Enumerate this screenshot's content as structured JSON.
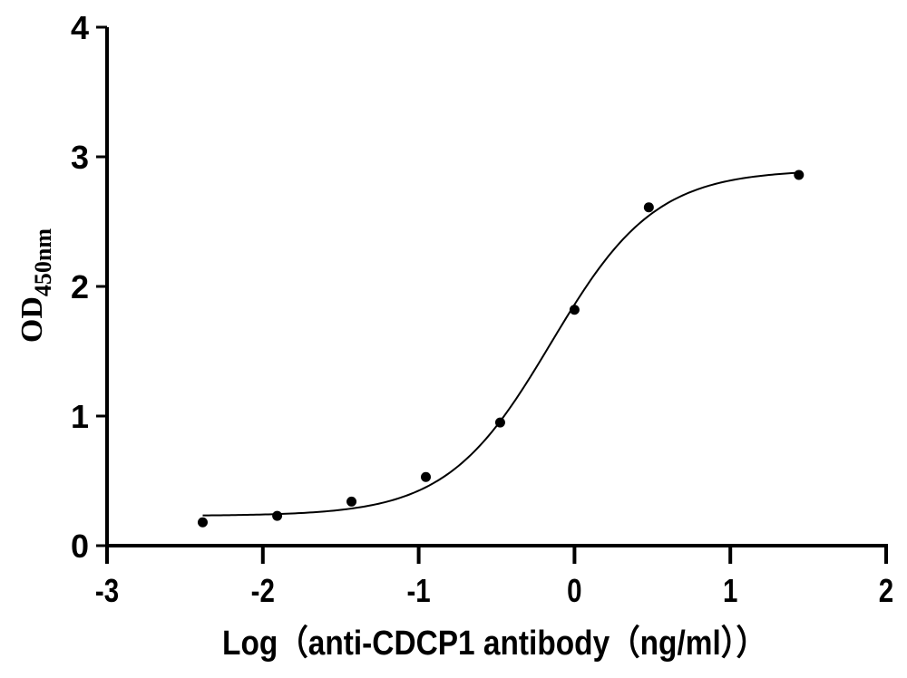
{
  "chart_data": {
    "type": "scatter",
    "title": "",
    "xlabel": "Log（anti-CDCP1 antibody（ng/ml））",
    "ylabel": "OD",
    "ylabel_subscript": "450nm",
    "xlim": [
      -3,
      2
    ],
    "ylim": [
      0,
      4
    ],
    "x_ticks": [
      "-3",
      "-2",
      "-1",
      "0",
      "1",
      "2"
    ],
    "y_ticks": [
      "0",
      "1",
      "2",
      "3",
      "4"
    ],
    "grid": false,
    "legend": "none",
    "series": [
      {
        "x": [
          -2.386,
          -1.908,
          -1.431,
          -0.954,
          -0.477,
          0.0,
          0.477,
          1.44
        ],
        "y": [
          0.18,
          0.23,
          0.34,
          0.53,
          0.95,
          1.82,
          2.61,
          2.86
        ]
      }
    ],
    "fit_curve": {
      "model": "four-parameter logistic",
      "bottom": 0.23,
      "top": 2.9,
      "logEC50": -0.15,
      "hill_slope": 1.3,
      "x_range": [
        -2.386,
        1.44
      ]
    },
    "colors": {
      "points": "#000000",
      "curve": "#000000",
      "axes": "#000000"
    }
  }
}
